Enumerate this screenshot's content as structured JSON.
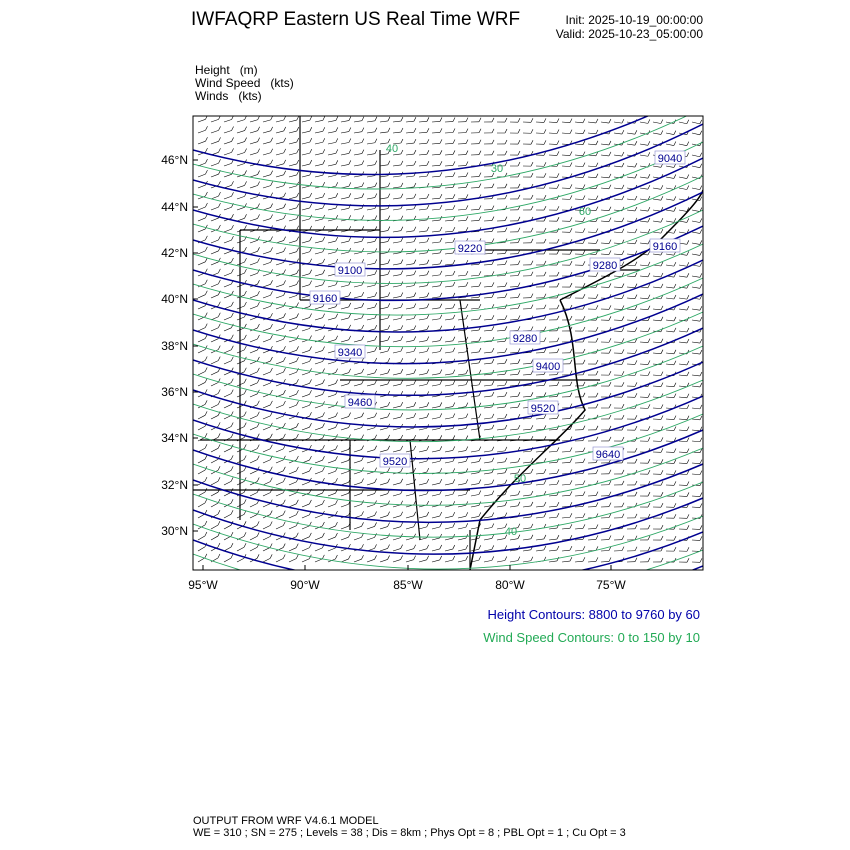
{
  "header": {
    "title": "IWFAQRP Eastern US Real Time WRF",
    "init": "Init: 2025-10-19_00:00:00",
    "valid": "Valid: 2025-10-23_05:00:00"
  },
  "variables": [
    "Height   (m)",
    "Wind Speed   (kts)",
    "Winds   (kts)"
  ],
  "map": {
    "lat_ticks": [
      "46°N",
      "44°N",
      "42°N",
      "40°N",
      "38°N",
      "36°N",
      "34°N",
      "32°N",
      "30°N"
    ],
    "lon_ticks": [
      "95°W",
      "90°W",
      "85°W",
      "80°W",
      "75°W"
    ],
    "height_labels": [
      "9040",
      "9220",
      "9160",
      "9100",
      "9160",
      "9280",
      "9340",
      "9280",
      "9400",
      "9460",
      "9520",
      "9520",
      "9640"
    ],
    "wind_labels": [
      "30",
      "40",
      "50",
      "60",
      "40"
    ],
    "colors": {
      "height": "#000090",
      "wind_speed": "#2ea866",
      "borders": "#000000"
    }
  },
  "legend": {
    "height": "Height Contours: 8800 to 9760 by 60",
    "wind": "Wind Speed Contours: 0 to 150 by 10"
  },
  "footer": {
    "line1": "OUTPUT FROM WRF V4.6.1 MODEL",
    "line2": "WE = 310 ; SN = 275 ; Levels = 38 ; Dis = 8km ; Phys Opt = 8 ; PBL Opt = 1 ; Cu Opt = 3"
  }
}
